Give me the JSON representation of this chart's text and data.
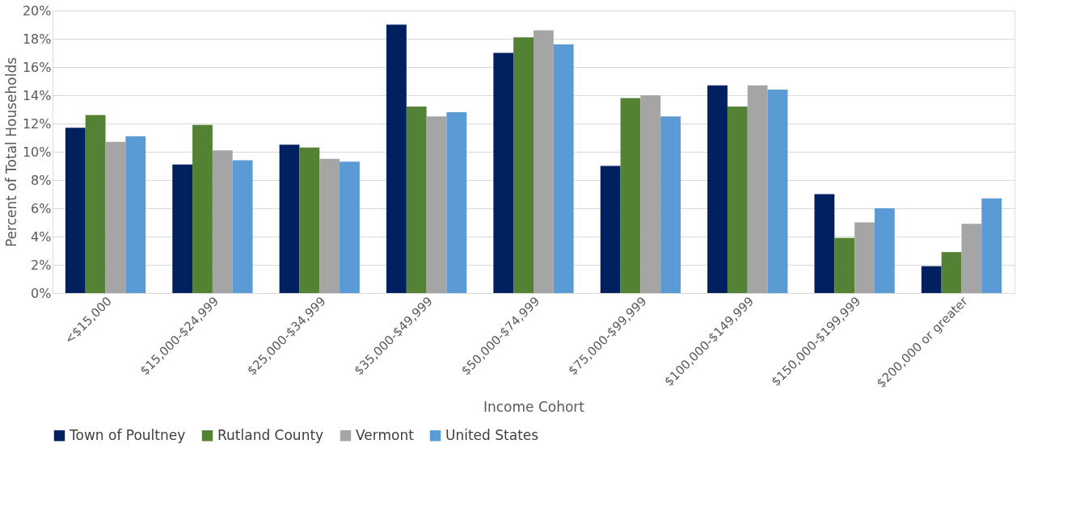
{
  "chart_data": {
    "type": "bar",
    "xlabel": "Income Cohort",
    "ylabel": "Percent of Total Households",
    "categories": [
      "<$15,000",
      "$15,000-$24,999",
      "$25,000-$34,999",
      "$35,000-$49,999",
      "$50,000-$74,999",
      "$75,000-$99,999",
      "$100,000-$149,999",
      "$150,000-$199,999",
      "$200,000 or greater"
    ],
    "series": [
      {
        "name": "Town of Poultney",
        "color": "#002060",
        "values": [
          11.7,
          9.1,
          10.5,
          19.0,
          17.0,
          9.0,
          14.7,
          7.0,
          1.9
        ]
      },
      {
        "name": "Rutland County",
        "color": "#548235",
        "values": [
          12.6,
          11.9,
          10.3,
          13.2,
          18.1,
          13.8,
          13.2,
          3.9,
          2.9
        ]
      },
      {
        "name": "Vermont",
        "color": "#a5a5a5",
        "values": [
          10.7,
          10.1,
          9.5,
          12.5,
          18.6,
          14.0,
          14.7,
          5.0,
          4.9
        ]
      },
      {
        "name": "United States",
        "color": "#5b9bd5",
        "values": [
          11.1,
          9.4,
          9.3,
          12.8,
          17.6,
          12.5,
          14.4,
          6.0,
          6.7
        ]
      }
    ],
    "ylim": [
      0,
      20
    ],
    "yticks": [
      {
        "value": 0,
        "label": "0%"
      },
      {
        "value": 2,
        "label": "2%"
      },
      {
        "value": 4,
        "label": "4%"
      },
      {
        "value": 6,
        "label": "6%"
      },
      {
        "value": 8,
        "label": "8%"
      },
      {
        "value": 10,
        "label": "10%"
      },
      {
        "value": 12,
        "label": "12%"
      },
      {
        "value": 14,
        "label": "14%"
      },
      {
        "value": 16,
        "label": "16%"
      },
      {
        "value": 18,
        "label": "18%"
      },
      {
        "value": 20,
        "label": "20%"
      }
    ],
    "grid": "y",
    "legend": "bottom"
  }
}
